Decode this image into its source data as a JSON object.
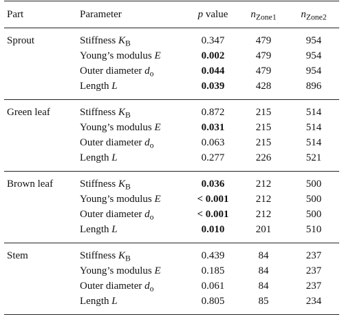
{
  "header": {
    "part": "Part",
    "parameter": "Parameter",
    "p_italic": "p",
    "p_rest": " value",
    "n_symbol": "n",
    "zone1": "Zone1",
    "zone2": "Zone2"
  },
  "groups": [
    {
      "part": "Sprout",
      "rows": [
        {
          "param": "Stiffness ",
          "sym": "K",
          "sub": "B",
          "p": "0.347",
          "bold": false,
          "n1": "479",
          "n2": "954"
        },
        {
          "param": "Young’s modulus ",
          "sym": "E",
          "sub": "",
          "p": "0.002",
          "bold": true,
          "n1": "479",
          "n2": "954"
        },
        {
          "param": "Outer diameter ",
          "sym": "d",
          "sub": "o",
          "p": "0.044",
          "bold": true,
          "n1": "479",
          "n2": "954"
        },
        {
          "param": "Length ",
          "sym": "L",
          "sub": "",
          "p": "0.039",
          "bold": true,
          "n1": "428",
          "n2": "896"
        }
      ]
    },
    {
      "part": "Green leaf",
      "rows": [
        {
          "param": "Stiffness ",
          "sym": "K",
          "sub": "B",
          "p": "0.872",
          "bold": false,
          "n1": "215",
          "n2": "514"
        },
        {
          "param": "Young’s modulus ",
          "sym": "E",
          "sub": "",
          "p": "0.031",
          "bold": true,
          "n1": "215",
          "n2": "514"
        },
        {
          "param": "Outer diameter ",
          "sym": "d",
          "sub": "o",
          "p": "0.063",
          "bold": false,
          "n1": "215",
          "n2": "514"
        },
        {
          "param": "Length ",
          "sym": "L",
          "sub": "",
          "p": "0.277",
          "bold": false,
          "n1": "226",
          "n2": "521"
        }
      ]
    },
    {
      "part": "Brown leaf",
      "rows": [
        {
          "param": "Stiffness ",
          "sym": "K",
          "sub": "B",
          "p": "0.036",
          "bold": true,
          "n1": "212",
          "n2": "500"
        },
        {
          "param": "Young’s modulus ",
          "sym": "E",
          "sub": "",
          "p": "< 0.001",
          "bold": true,
          "n1": "212",
          "n2": "500"
        },
        {
          "param": "Outer diameter ",
          "sym": "d",
          "sub": "o",
          "p": "< 0.001",
          "bold": true,
          "n1": "212",
          "n2": "500"
        },
        {
          "param": "Length ",
          "sym": "L",
          "sub": "",
          "p": "0.010",
          "bold": true,
          "n1": "201",
          "n2": "510"
        }
      ]
    },
    {
      "part": "Stem",
      "rows": [
        {
          "param": "Stiffness ",
          "sym": "K",
          "sub": "B",
          "p": "0.439",
          "bold": false,
          "n1": "84",
          "n2": "237"
        },
        {
          "param": "Young’s modulus ",
          "sym": "E",
          "sub": "",
          "p": "0.185",
          "bold": false,
          "n1": "84",
          "n2": "237"
        },
        {
          "param": "Outer diameter ",
          "sym": "d",
          "sub": "o",
          "p": "0.061",
          "bold": false,
          "n1": "84",
          "n2": "237"
        },
        {
          "param": "Length ",
          "sym": "L",
          "sub": "",
          "p": "0.805",
          "bold": false,
          "n1": "85",
          "n2": "234"
        }
      ]
    }
  ]
}
